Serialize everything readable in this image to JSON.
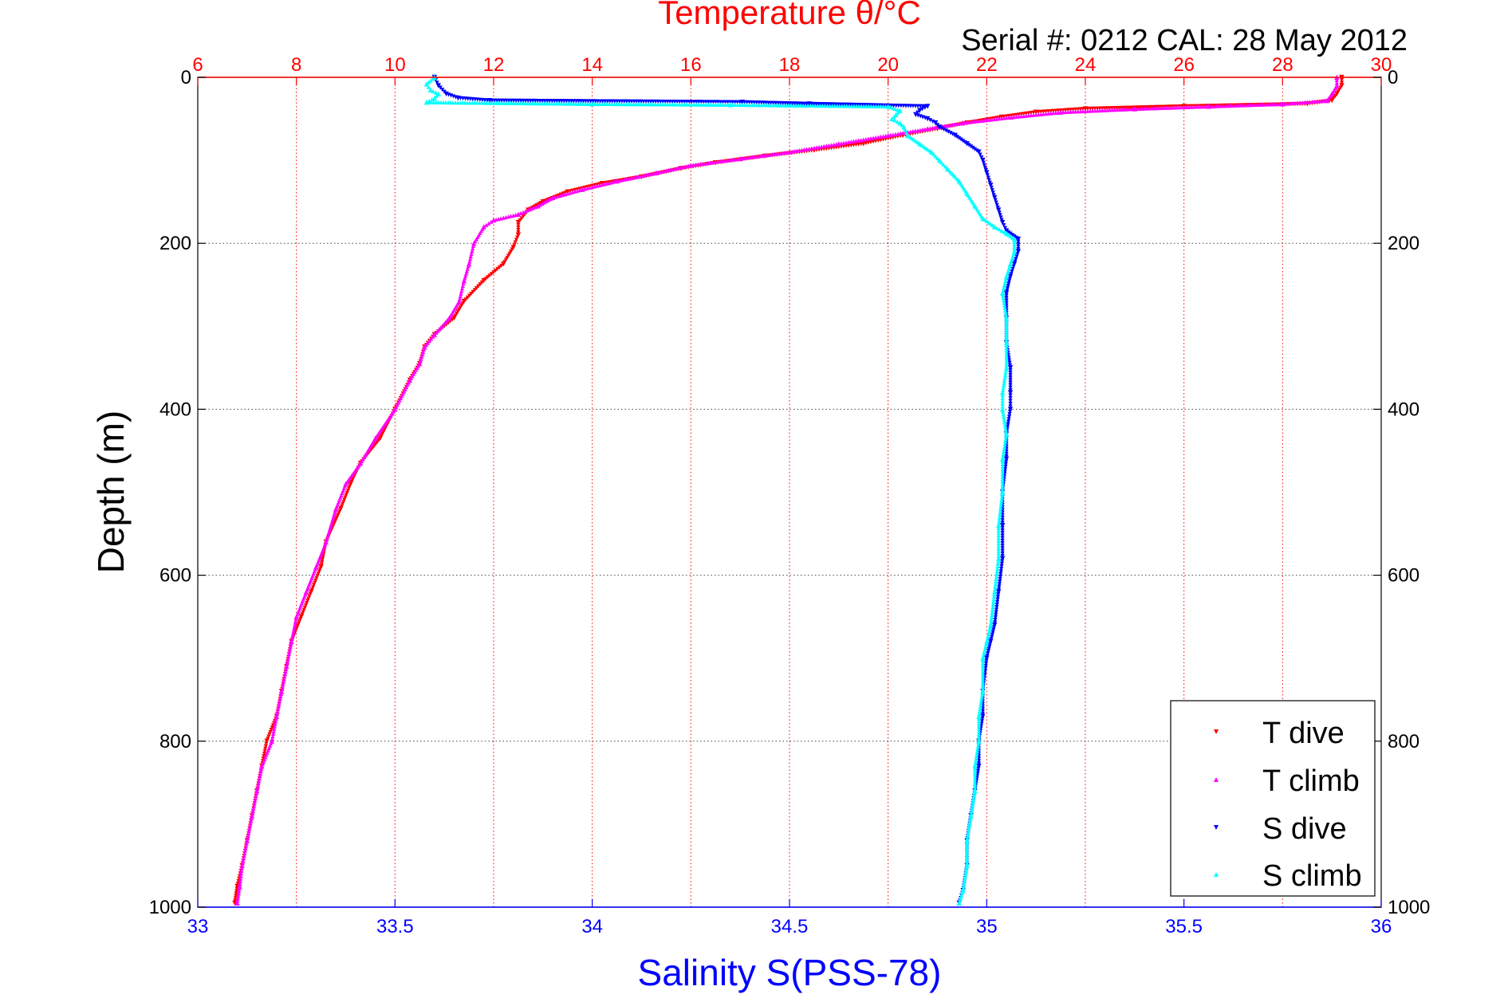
{
  "colors": {
    "t_axis": "#ff0000",
    "s_axis": "#0000ff",
    "t_dive": "#ff0000",
    "t_climb": "#ff00ff",
    "s_dive": "#0000ff",
    "s_climb": "#00ffff",
    "grid_depth": "#444444",
    "text": "#000000"
  },
  "chart_data": {
    "type": "scatter",
    "title": "Temperature θ/°C",
    "subtitle": "Serial #: 0212  CAL: 28 May 2012",
    "ylabel": "Depth (m)",
    "xlabel_bottom": "Salinity S(PSS-78)",
    "xlabel_top": "Temperature θ/°C",
    "ylim": [
      0,
      1000
    ],
    "y_reversed": true,
    "y_ticks": [
      0,
      200,
      400,
      600,
      800,
      1000
    ],
    "x_bottom_lim": [
      33,
      36
    ],
    "x_bottom_ticks": [
      33,
      33.5,
      34,
      34.5,
      35,
      35.5,
      36
    ],
    "x_top_lim": [
      6,
      30
    ],
    "x_top_ticks": [
      6,
      8,
      10,
      12,
      14,
      16,
      18,
      20,
      22,
      24,
      26,
      28,
      30
    ],
    "legend_position": "bottom-right",
    "grid": true,
    "legend": [
      {
        "key": "t_dive",
        "label": "T dive",
        "marker": "triangle-down"
      },
      {
        "key": "t_climb",
        "label": "T climb",
        "marker": "triangle-up"
      },
      {
        "key": "s_dive",
        "label": "S dive",
        "marker": "triangle-down"
      },
      {
        "key": "s_climb",
        "label": "S climb",
        "marker": "triangle-up"
      }
    ],
    "series": [
      {
        "key": "t_dive",
        "axis": "temperature",
        "points": [
          [
            29.2,
            0
          ],
          [
            29.2,
            10
          ],
          [
            29.1,
            20
          ],
          [
            29.0,
            28
          ],
          [
            28.5,
            32
          ],
          [
            26.0,
            35
          ],
          [
            24.0,
            38
          ],
          [
            23.0,
            42
          ],
          [
            22.3,
            48
          ],
          [
            21.6,
            55
          ],
          [
            21.0,
            62
          ],
          [
            20.3,
            70
          ],
          [
            19.5,
            80
          ],
          [
            18.5,
            88
          ],
          [
            17.5,
            95
          ],
          [
            16.5,
            103
          ],
          [
            15.8,
            110
          ],
          [
            15.0,
            120
          ],
          [
            14.2,
            128
          ],
          [
            13.5,
            138
          ],
          [
            13.0,
            150
          ],
          [
            12.7,
            160
          ],
          [
            12.5,
            175
          ],
          [
            12.5,
            190
          ],
          [
            12.4,
            205
          ],
          [
            12.2,
            225
          ],
          [
            11.8,
            245
          ],
          [
            11.4,
            270
          ],
          [
            11.2,
            290
          ],
          [
            10.8,
            310
          ],
          [
            10.6,
            325
          ],
          [
            10.5,
            345
          ],
          [
            10.3,
            365
          ],
          [
            10.0,
            400
          ],
          [
            9.7,
            435
          ],
          [
            9.3,
            465
          ],
          [
            9.1,
            490
          ],
          [
            8.9,
            520
          ],
          [
            8.6,
            560
          ],
          [
            8.5,
            590
          ],
          [
            8.3,
            620
          ],
          [
            8.1,
            650
          ],
          [
            7.9,
            680
          ],
          [
            7.8,
            710
          ],
          [
            7.7,
            740
          ],
          [
            7.6,
            770
          ],
          [
            7.4,
            800
          ],
          [
            7.3,
            830
          ],
          [
            7.2,
            860
          ],
          [
            7.1,
            890
          ],
          [
            7.0,
            920
          ],
          [
            6.9,
            950
          ],
          [
            6.8,
            975
          ],
          [
            6.75,
            995
          ]
        ]
      },
      {
        "key": "t_climb",
        "axis": "temperature",
        "points": [
          [
            29.1,
            0
          ],
          [
            29.1,
            10
          ],
          [
            29.0,
            20
          ],
          [
            28.9,
            28
          ],
          [
            28.0,
            32
          ],
          [
            26.5,
            35
          ],
          [
            25.0,
            38
          ],
          [
            23.5,
            42
          ],
          [
            22.5,
            48
          ],
          [
            21.5,
            55
          ],
          [
            20.8,
            62
          ],
          [
            20.0,
            70
          ],
          [
            19.0,
            80
          ],
          [
            18.0,
            90
          ],
          [
            17.0,
            98
          ],
          [
            16.0,
            106
          ],
          [
            15.3,
            115
          ],
          [
            14.5,
            125
          ],
          [
            13.8,
            135
          ],
          [
            13.2,
            145
          ],
          [
            12.9,
            155
          ],
          [
            12.5,
            165
          ],
          [
            12.0,
            172
          ],
          [
            11.8,
            180
          ],
          [
            11.6,
            200
          ],
          [
            11.5,
            225
          ],
          [
            11.4,
            245
          ],
          [
            11.3,
            270
          ],
          [
            11.1,
            290
          ],
          [
            10.8,
            310
          ],
          [
            10.6,
            325
          ],
          [
            10.5,
            345
          ],
          [
            10.3,
            365
          ],
          [
            10.0,
            400
          ],
          [
            9.6,
            435
          ],
          [
            9.3,
            465
          ],
          [
            9.0,
            490
          ],
          [
            8.8,
            520
          ],
          [
            8.6,
            560
          ],
          [
            8.4,
            590
          ],
          [
            8.2,
            620
          ],
          [
            8.0,
            650
          ],
          [
            7.9,
            680
          ],
          [
            7.8,
            710
          ],
          [
            7.7,
            740
          ],
          [
            7.6,
            770
          ],
          [
            7.5,
            800
          ],
          [
            7.3,
            830
          ],
          [
            7.2,
            860
          ],
          [
            7.1,
            890
          ],
          [
            7.0,
            920
          ],
          [
            6.9,
            950
          ],
          [
            6.85,
            975
          ],
          [
            6.8,
            995
          ]
        ]
      },
      {
        "key": "s_dive",
        "axis": "salinity",
        "points": [
          [
            33.6,
            0
          ],
          [
            33.61,
            10
          ],
          [
            33.63,
            20
          ],
          [
            33.66,
            25
          ],
          [
            33.74,
            28
          ],
          [
            34.38,
            30
          ],
          [
            34.55,
            32
          ],
          [
            34.85,
            35
          ],
          [
            34.83,
            40
          ],
          [
            34.82,
            45
          ],
          [
            34.85,
            50
          ],
          [
            34.87,
            55
          ],
          [
            34.88,
            60
          ],
          [
            34.92,
            70
          ],
          [
            34.95,
            80
          ],
          [
            34.98,
            90
          ],
          [
            34.99,
            100
          ],
          [
            35.0,
            115
          ],
          [
            35.01,
            130
          ],
          [
            35.02,
            145
          ],
          [
            35.03,
            160
          ],
          [
            35.04,
            175
          ],
          [
            35.05,
            185
          ],
          [
            35.08,
            195
          ],
          [
            35.08,
            210
          ],
          [
            35.07,
            225
          ],
          [
            35.06,
            240
          ],
          [
            35.05,
            260
          ],
          [
            35.05,
            290
          ],
          [
            35.05,
            320
          ],
          [
            35.06,
            350
          ],
          [
            35.06,
            380
          ],
          [
            35.06,
            400
          ],
          [
            35.05,
            430
          ],
          [
            35.05,
            460
          ],
          [
            35.04,
            500
          ],
          [
            35.04,
            540
          ],
          [
            35.04,
            580
          ],
          [
            35.03,
            620
          ],
          [
            35.02,
            660
          ],
          [
            35.01,
            680
          ],
          [
            35.0,
            700
          ],
          [
            34.99,
            740
          ],
          [
            34.99,
            770
          ],
          [
            34.98,
            800
          ],
          [
            34.98,
            830
          ],
          [
            34.97,
            860
          ],
          [
            34.96,
            890
          ],
          [
            34.95,
            920
          ],
          [
            34.95,
            950
          ],
          [
            34.94,
            980
          ],
          [
            34.93,
            995
          ]
        ]
      },
      {
        "key": "s_climb",
        "axis": "salinity",
        "points": [
          [
            33.6,
            0
          ],
          [
            33.58,
            8
          ],
          [
            33.59,
            15
          ],
          [
            33.61,
            20
          ],
          [
            33.6,
            25
          ],
          [
            33.58,
            30
          ],
          [
            34.0,
            32
          ],
          [
            34.35,
            33
          ],
          [
            34.75,
            35
          ],
          [
            34.78,
            40
          ],
          [
            34.77,
            45
          ],
          [
            34.76,
            50
          ],
          [
            34.78,
            55
          ],
          [
            34.79,
            60
          ],
          [
            34.8,
            70
          ],
          [
            34.83,
            80
          ],
          [
            34.86,
            90
          ],
          [
            34.88,
            100
          ],
          [
            34.9,
            110
          ],
          [
            34.93,
            125
          ],
          [
            34.95,
            140
          ],
          [
            34.97,
            155
          ],
          [
            34.99,
            170
          ],
          [
            35.02,
            180
          ],
          [
            35.05,
            188
          ],
          [
            35.07,
            195
          ],
          [
            35.07,
            210
          ],
          [
            35.06,
            225
          ],
          [
            35.05,
            240
          ],
          [
            35.04,
            260
          ],
          [
            35.05,
            290
          ],
          [
            35.05,
            320
          ],
          [
            35.05,
            350
          ],
          [
            35.04,
            380
          ],
          [
            35.04,
            400
          ],
          [
            35.05,
            430
          ],
          [
            35.04,
            460
          ],
          [
            35.04,
            500
          ],
          [
            35.03,
            540
          ],
          [
            35.03,
            580
          ],
          [
            35.02,
            620
          ],
          [
            35.01,
            660
          ],
          [
            35.0,
            680
          ],
          [
            34.99,
            700
          ],
          [
            34.99,
            740
          ],
          [
            34.98,
            770
          ],
          [
            34.98,
            800
          ],
          [
            34.97,
            830
          ],
          [
            34.97,
            860
          ],
          [
            34.96,
            890
          ],
          [
            34.95,
            920
          ],
          [
            34.95,
            950
          ],
          [
            34.94,
            980
          ],
          [
            34.93,
            995
          ]
        ]
      }
    ]
  }
}
